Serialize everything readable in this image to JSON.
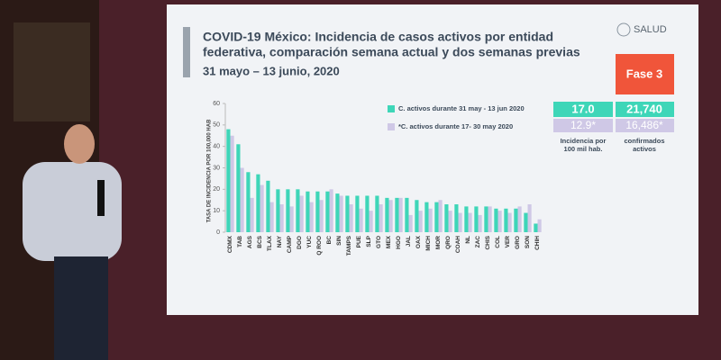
{
  "chart_data": {
    "type": "bar",
    "title": [
      "COVID-19 México: Incidencia de casos activos por entidad",
      "federativa, comparación semana actual y dos semanas previas"
    ],
    "subtitle": "31 mayo – 13 junio, 2020",
    "logo": "SALUD",
    "phase": "Fase 3",
    "y_label": "TASA DE INCIDENCIA POR 100,000 HAB",
    "categories": [
      "CDMX",
      "TAB",
      "AGS",
      "BCS",
      "TLAX",
      "NAY",
      "CAMP",
      "DGO",
      "YUC",
      "Q ROO",
      "BC",
      "SIN",
      "TAMPS",
      "PUE",
      "SLP",
      "GTO",
      "MEX",
      "HGO",
      "JAL",
      "OAX",
      "MICH",
      "MOR",
      "QRO",
      "COAH",
      "NL",
      "ZAC",
      "CHIS",
      "COL",
      "VER",
      "GRO",
      "SON",
      "CHIH"
    ],
    "series": [
      {
        "name": "C. activos durante 31 may - 13 jun 2020",
        "color": "#3ed6b8",
        "values": [
          48,
          41,
          28,
          27,
          24,
          20,
          20,
          20,
          19,
          19,
          19,
          18,
          17,
          17,
          17,
          17,
          16,
          16,
          16,
          15,
          14,
          14,
          13,
          13,
          12,
          12,
          12,
          11,
          11,
          11,
          9,
          4
        ]
      },
      {
        "name": "*C. activos durante 17- 30 may 2020",
        "color": "#cfc8e6",
        "values": [
          45,
          30,
          16,
          22,
          14,
          13,
          12,
          17,
          14,
          15,
          20,
          17,
          13,
          11,
          10,
          13,
          15,
          16,
          8,
          10,
          11,
          15,
          10,
          9,
          9,
          8,
          12,
          10,
          9,
          12,
          13,
          6
        ]
      }
    ],
    "ylim": [
      0,
      60
    ],
    "yticks": [
      0,
      10,
      20,
      30,
      40,
      50,
      60
    ],
    "annotations": [
      "17.0",
      "21,740",
      "12.9*",
      "16,486*",
      "Incidencia por",
      "100 mil hab.",
      "confirmados",
      "activos"
    ]
  }
}
